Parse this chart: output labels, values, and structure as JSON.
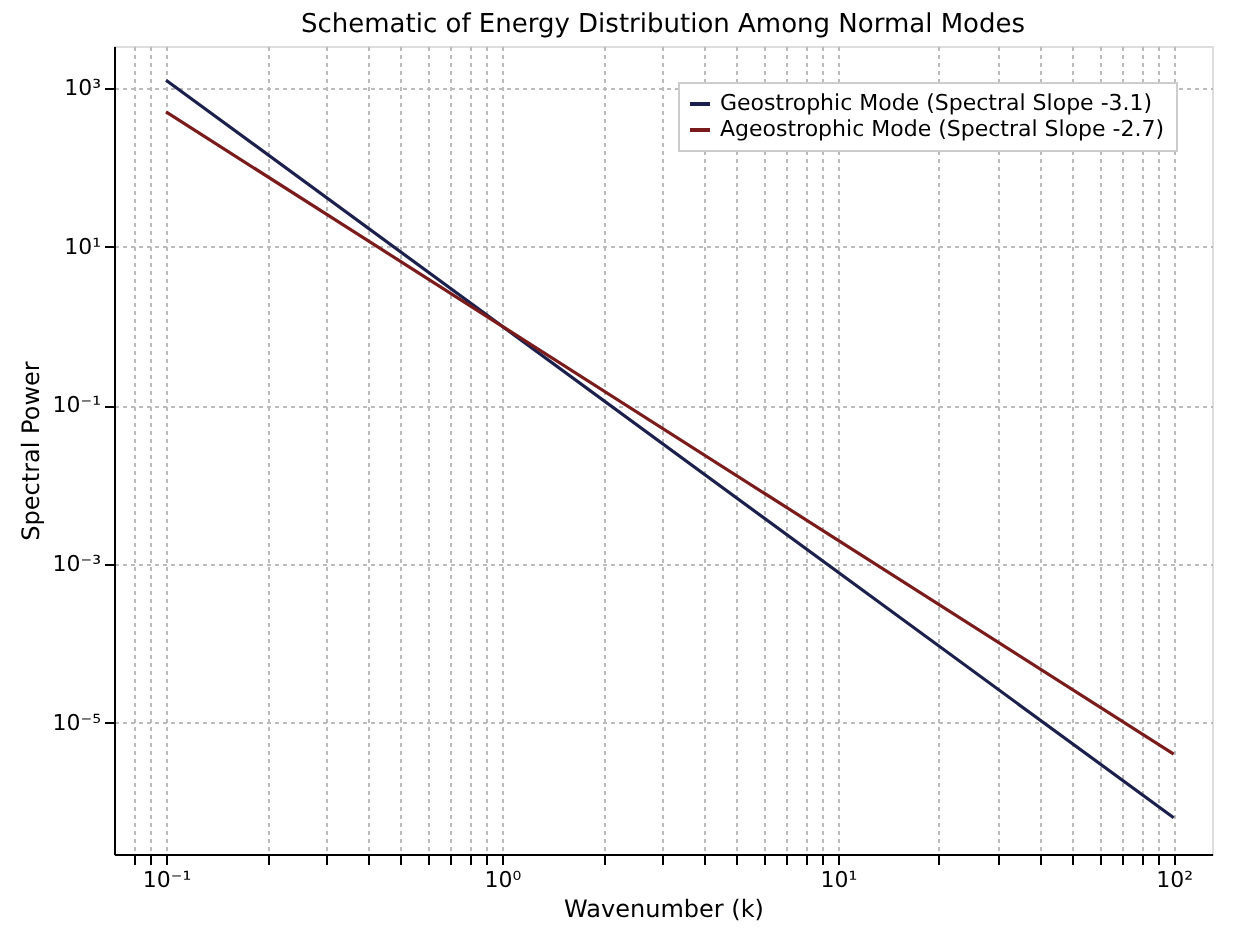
{
  "chart_data": {
    "type": "line",
    "title": "Schematic of Energy Distribution Among Normal Modes",
    "xlabel": "Wavenumber (k)",
    "ylabel": "Spectral Power",
    "log": "xy",
    "grid": true,
    "legend": "top right",
    "marker": "none",
    "line_style": "solid",
    "xlim": [
      0.07,
      130
    ],
    "ylim": [
      2.2e-07,
      3400
    ],
    "xticks": [
      {
        "value": 0.08,
        "label": null
      },
      {
        "value": 0.09,
        "label": null
      },
      {
        "value": 0.1,
        "label": "10⁻¹"
      },
      {
        "value": 0.2,
        "label": null
      },
      {
        "value": 0.3,
        "label": null
      },
      {
        "value": 0.4,
        "label": null
      },
      {
        "value": 0.5,
        "label": null
      },
      {
        "value": 0.6,
        "label": null
      },
      {
        "value": 0.7,
        "label": null
      },
      {
        "value": 0.8,
        "label": null
      },
      {
        "value": 0.9,
        "label": null
      },
      {
        "value": 1,
        "label": "10⁰"
      },
      {
        "value": 2,
        "label": null
      },
      {
        "value": 3,
        "label": null
      },
      {
        "value": 4,
        "label": null
      },
      {
        "value": 5,
        "label": null
      },
      {
        "value": 6,
        "label": null
      },
      {
        "value": 7,
        "label": null
      },
      {
        "value": 8,
        "label": null
      },
      {
        "value": 9,
        "label": null
      },
      {
        "value": 10,
        "label": "10¹"
      },
      {
        "value": 20,
        "label": null
      },
      {
        "value": 30,
        "label": null
      },
      {
        "value": 40,
        "label": null
      },
      {
        "value": 50,
        "label": null
      },
      {
        "value": 60,
        "label": null
      },
      {
        "value": 70,
        "label": null
      },
      {
        "value": 80,
        "label": null
      },
      {
        "value": 90,
        "label": null
      },
      {
        "value": 100,
        "label": "10²"
      }
    ],
    "yticks": [
      {
        "value": 1e-05,
        "label": "10⁻⁵"
      },
      {
        "value": 0.001,
        "label": "10⁻³"
      },
      {
        "value": 0.1,
        "label": "10⁻¹"
      },
      {
        "value": 10,
        "label": "10¹"
      },
      {
        "value": 1000,
        "label": "10³"
      }
    ],
    "x": [
      0.1,
      1,
      10,
      100
    ],
    "series": [
      {
        "name": "Geostrophic Mode (Spectral Slope -3.1)",
        "color": "#1b1f4b",
        "values": [
          1259,
          1,
          0.00079,
          6.3e-07
        ]
      },
      {
        "name": "Ageostrophic Mode (Spectral Slope -2.7)",
        "color": "#7b1a1a",
        "values": [
          501,
          1,
          0.002,
          4e-06
        ]
      }
    ]
  }
}
